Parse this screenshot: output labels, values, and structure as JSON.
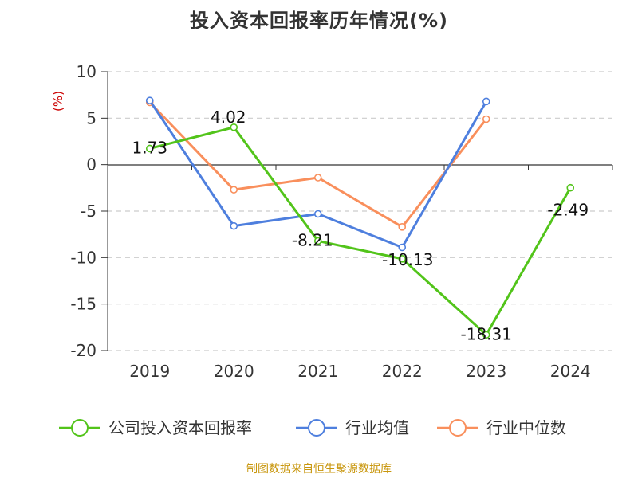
{
  "title": "投入资本回报率历年情况(%)",
  "footer": "制图数据来自恒生聚源数据库",
  "colors": {
    "company": "#52c41a",
    "industry_avg": "#4e7fde",
    "industry_median": "#f98f5c",
    "unit": "#cc0000",
    "grid": "#cccccc",
    "axis": "#333333"
  },
  "chart_data": {
    "type": "line",
    "title": "投入资本回报率历年情况(%)",
    "ylabel": "(%)",
    "xlabel": "",
    "categories": [
      "2019",
      "2020",
      "2021",
      "2022",
      "2023",
      "2024"
    ],
    "ylim": [
      -20,
      10
    ],
    "yticks": [
      10,
      5,
      0,
      -5,
      -10,
      -15,
      -20
    ],
    "grid": true,
    "legend_position": "bottom",
    "series": [
      {
        "name": "公司投入资本回报率",
        "color": "#52c41a",
        "values": [
          1.73,
          4.02,
          -8.21,
          -10.13,
          -18.31,
          -2.49
        ],
        "labels": true
      },
      {
        "name": "行业均值",
        "color": "#4e7fde",
        "values": [
          6.9,
          -6.6,
          -5.3,
          -8.9,
          6.8,
          null
        ],
        "labels": false
      },
      {
        "name": "行业中位数",
        "color": "#f98f5c",
        "values": [
          6.7,
          -2.7,
          -1.4,
          -6.7,
          4.9,
          null
        ],
        "labels": false
      }
    ]
  }
}
